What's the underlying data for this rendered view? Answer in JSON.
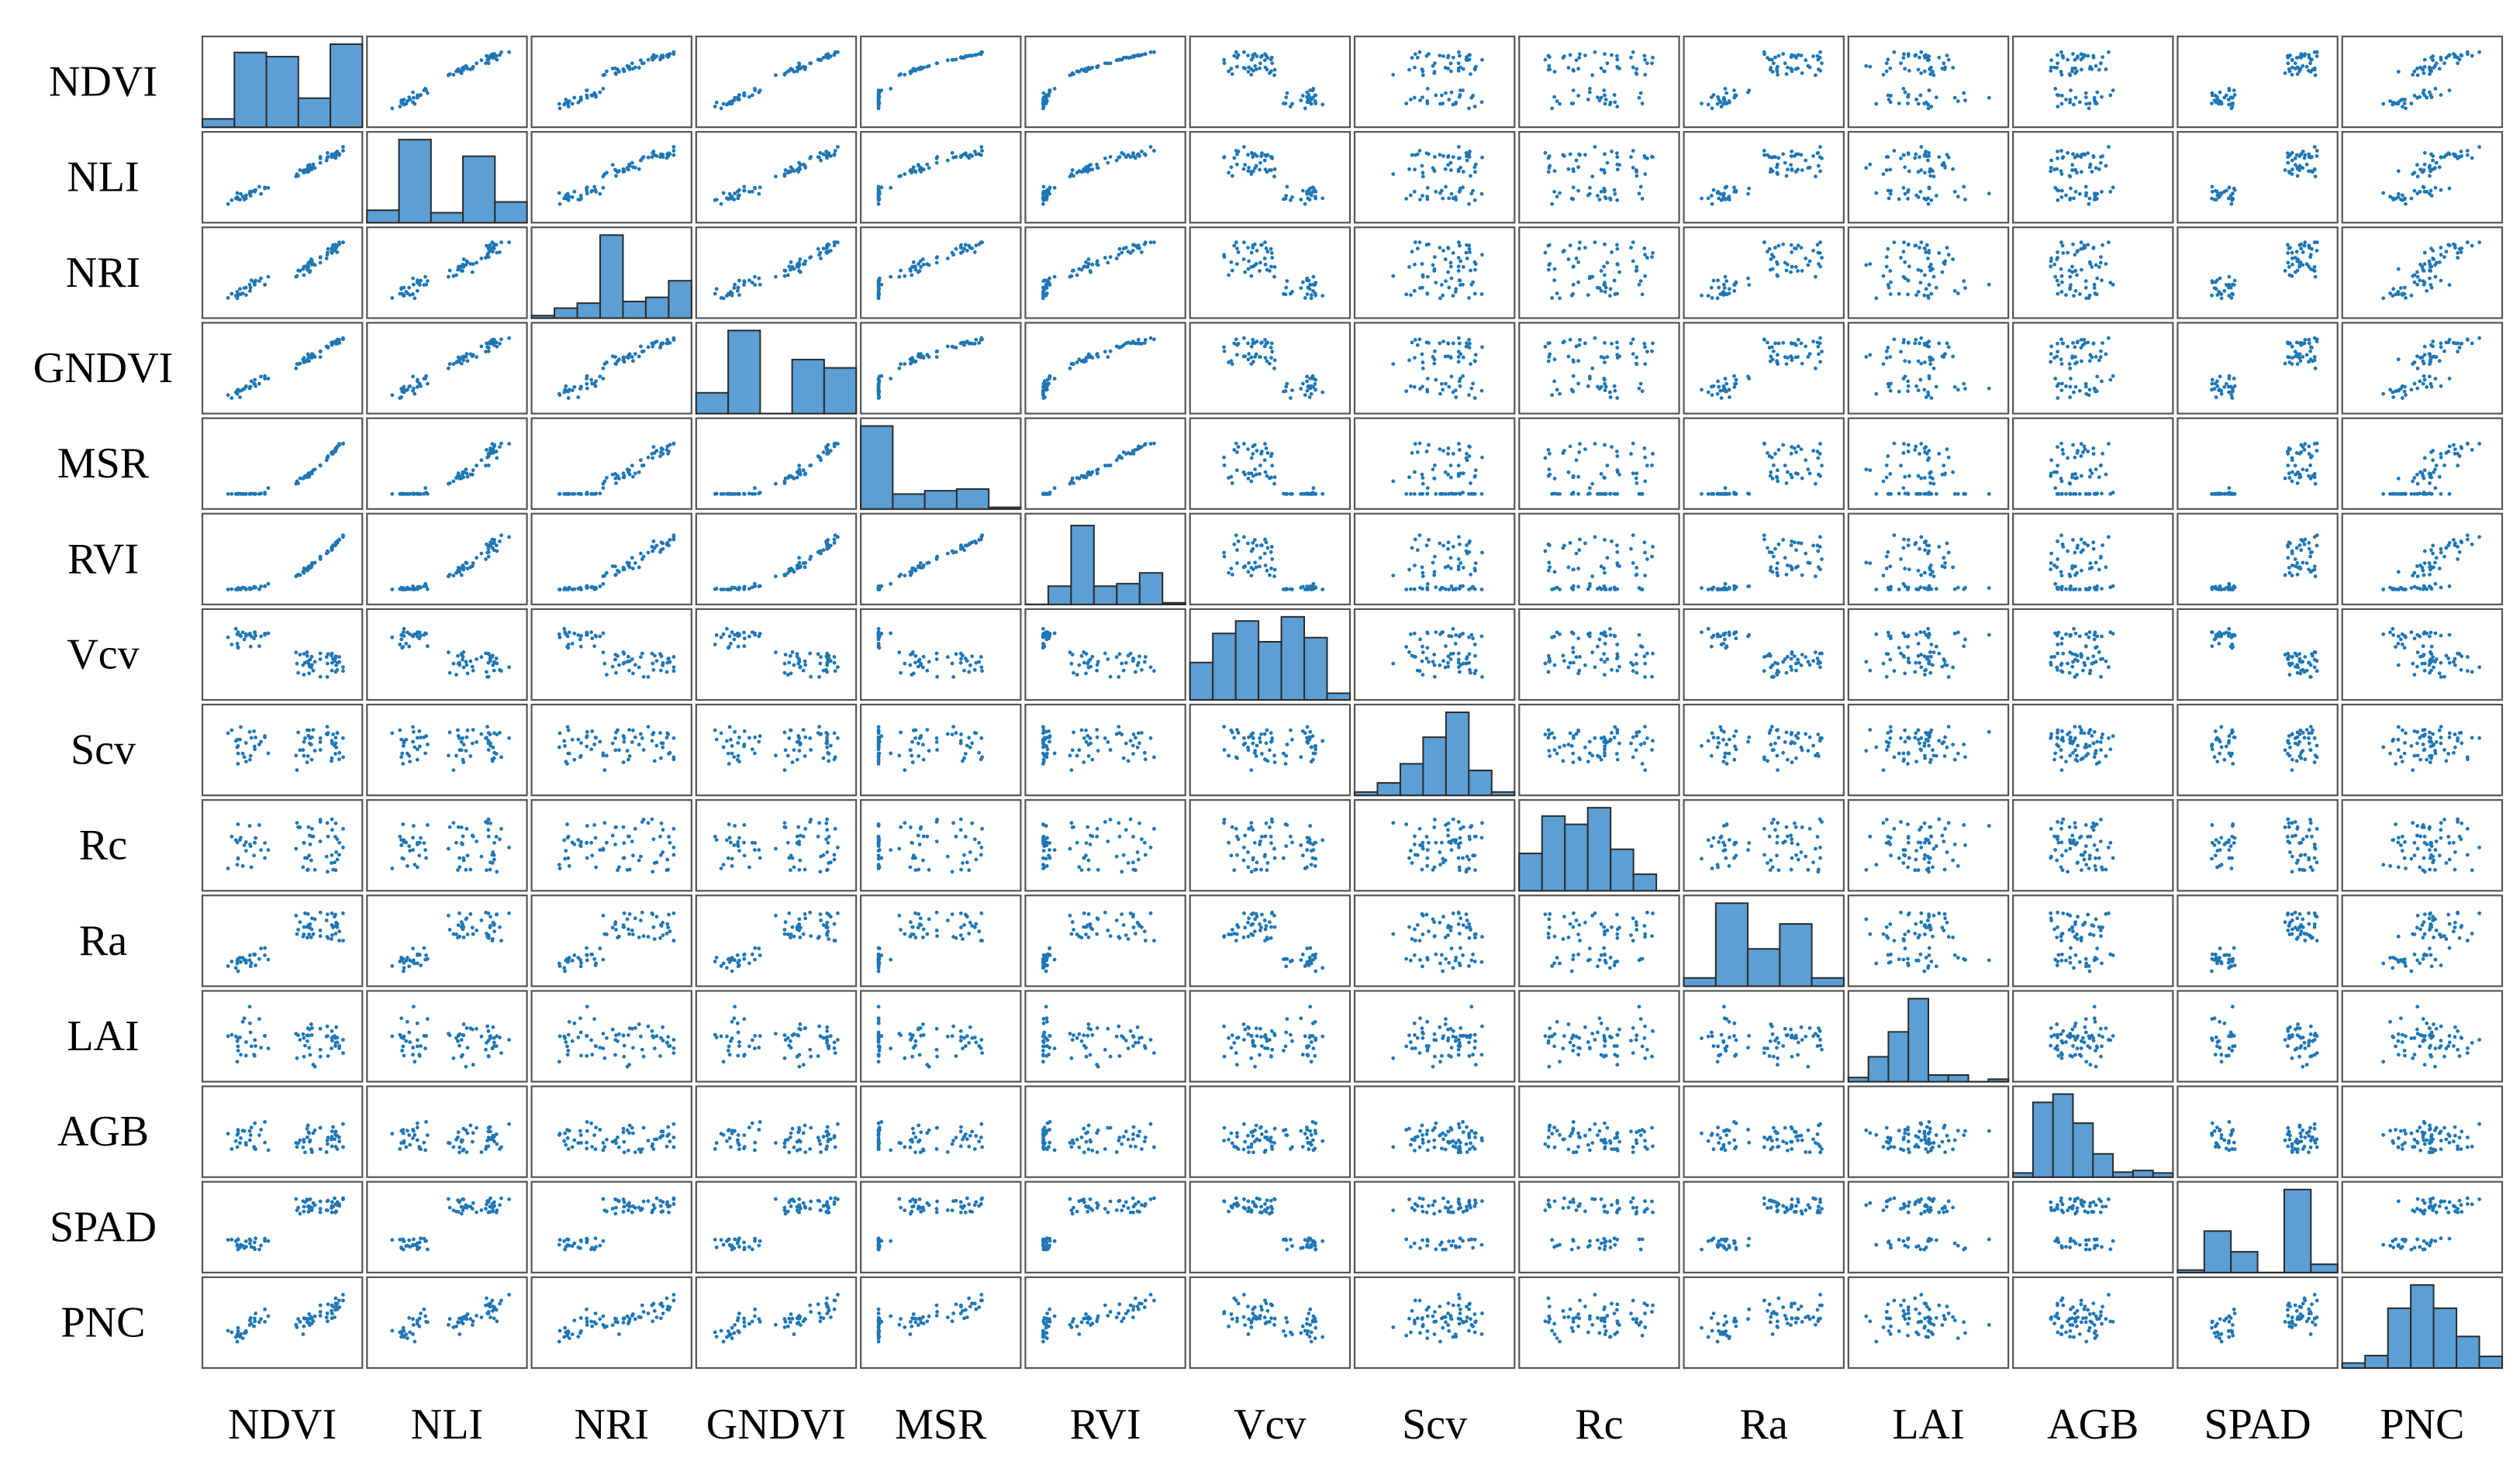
{
  "chart_data": {
    "type": "scatter",
    "title": "",
    "variables": [
      "NDVI",
      "NLI",
      "NRI",
      "GNDVI",
      "MSR",
      "RVI",
      "Vcv",
      "Scv",
      "Rc",
      "Ra",
      "LAI",
      "AGB",
      "SPAD",
      "PNC"
    ],
    "diagonal": "histogram",
    "grid": false,
    "legend": "none",
    "colors": {
      "points": "#1f77b4",
      "bars": "#5b9fd4",
      "bar_edge": "#2b2b2b",
      "frame": "#555555"
    },
    "histograms": [
      [
        0.1,
        0.9,
        0.85,
        0.35,
        1.0
      ],
      [
        0.15,
        1.0,
        0.12,
        0.8,
        0.25
      ],
      [
        0.03,
        0.12,
        0.18,
        1.0,
        0.2,
        0.25,
        0.45
      ],
      [
        0.25,
        1.0,
        0.0,
        0.65,
        0.55
      ],
      [
        1.0,
        0.18,
        0.22,
        0.24,
        0.02
      ],
      [
        0.0,
        0.22,
        0.95,
        0.22,
        0.25,
        0.38,
        0.02
      ],
      [
        0.45,
        0.8,
        0.95,
        0.7,
        1.0,
        0.75,
        0.08
      ],
      [
        0.04,
        0.15,
        0.38,
        0.7,
        1.0,
        0.3,
        0.04
      ],
      [
        0.45,
        0.9,
        0.8,
        1.0,
        0.5,
        0.2,
        0.0
      ],
      [
        0.1,
        1.0,
        0.45,
        0.75,
        0.1
      ],
      [
        0.05,
        0.3,
        0.6,
        1.0,
        0.08,
        0.08,
        0.0,
        0.03
      ],
      [
        0.05,
        0.9,
        1.0,
        0.65,
        0.28,
        0.06,
        0.08,
        0.05
      ],
      [
        0.03,
        0.5,
        0.25,
        0.0,
        1.0,
        0.1
      ],
      [
        0.06,
        0.15,
        0.72,
        1.0,
        0.72,
        0.38,
        0.14
      ]
    ]
  }
}
